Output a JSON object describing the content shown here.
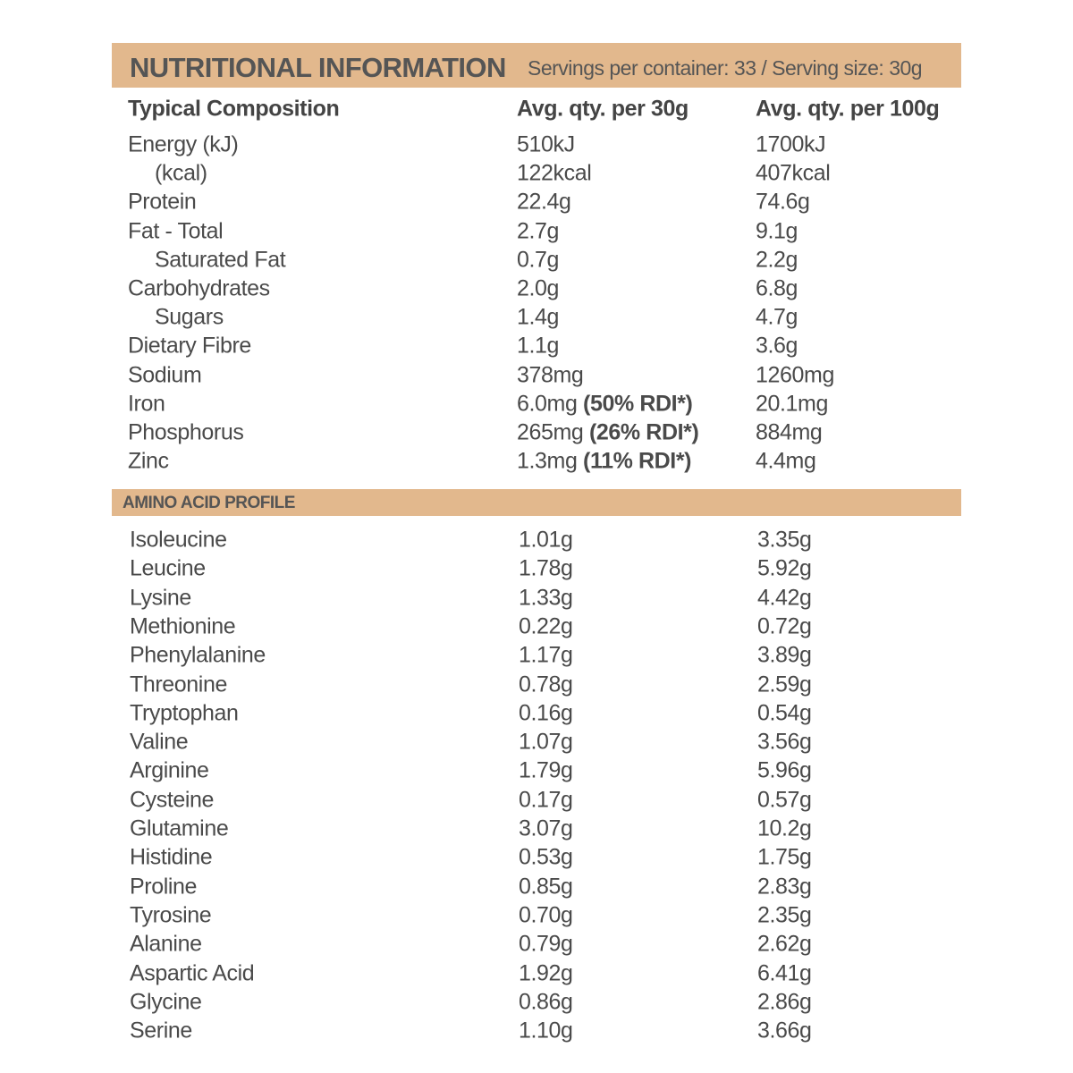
{
  "header": {
    "title": "NUTRITIONAL INFORMATION",
    "subtitle": "Servings per container: 33 / Serving size: 30g"
  },
  "nutrition": {
    "columns": [
      "Typical Composition",
      "Avg. qty. per 30g",
      "Avg. qty. per 100g"
    ],
    "rows": [
      {
        "name": "Energy (kJ)",
        "per_serving": "510kJ",
        "per_100g": "1700kJ",
        "sub": [
          {
            "name": "(kcal)",
            "per_serving": "122kcal",
            "per_100g": "407kcal"
          }
        ]
      },
      {
        "name": "Protein",
        "per_serving": "22.4g",
        "per_100g": "74.6g"
      },
      {
        "name": "Fat - Total",
        "per_serving": "2.7g",
        "per_100g": "9.1g",
        "sub": [
          {
            "name": "Saturated Fat",
            "per_serving": "0.7g",
            "per_100g": "2.2g"
          }
        ]
      },
      {
        "name": "Carbohydrates",
        "per_serving": "2.0g",
        "per_100g": "6.8g",
        "sub": [
          {
            "name": "Sugars",
            "per_serving": "1.4g",
            "per_100g": "4.7g"
          }
        ]
      },
      {
        "name": "Dietary Fibre",
        "per_serving": "1.1g",
        "per_100g": "3.6g"
      },
      {
        "name": "Sodium",
        "per_serving": "378mg",
        "per_100g": "1260mg"
      },
      {
        "name": "Iron",
        "per_serving": "6.0mg",
        "rdi": "(50% RDI*)",
        "per_100g": "20.1mg"
      },
      {
        "name": "Phosphorus",
        "per_serving": "265mg",
        "rdi": "(26% RDI*)",
        "per_100g": "884mg"
      },
      {
        "name": "Zinc",
        "per_serving": "1.3mg",
        "rdi": "(11% RDI*)",
        "per_100g": "4.4mg"
      }
    ]
  },
  "amino_acids": {
    "title": "AMINO ACID PROFILE",
    "rows": [
      [
        "Isoleucine",
        "1.01g",
        "3.35g"
      ],
      [
        "Leucine",
        "1.78g",
        "5.92g"
      ],
      [
        "Lysine",
        "1.33g",
        "4.42g"
      ],
      [
        "Methionine",
        "0.22g",
        "0.72g"
      ],
      [
        "Phenylalanine",
        "1.17g",
        "3.89g"
      ],
      [
        "Threonine",
        "0.78g",
        "2.59g"
      ],
      [
        "Tryptophan",
        "0.16g",
        "0.54g"
      ],
      [
        "Valine",
        "1.07g",
        "3.56g"
      ],
      [
        "Arginine",
        "1.79g",
        "5.96g"
      ],
      [
        "Cysteine",
        "0.17g",
        "0.57g"
      ],
      [
        "Glutamine",
        "3.07g",
        "10.2g"
      ],
      [
        "Histidine",
        "0.53g",
        "1.75g"
      ],
      [
        "Proline",
        "0.85g",
        "2.83g"
      ],
      [
        "Tyrosine",
        "0.70g",
        "2.35g"
      ],
      [
        "Alanine",
        "0.79g",
        "2.62g"
      ],
      [
        "Aspartic Acid",
        "1.92g",
        "6.41g"
      ],
      [
        "Glycine",
        "0.86g",
        "2.86g"
      ],
      [
        "Serine",
        "1.10g",
        "3.66g"
      ]
    ]
  }
}
